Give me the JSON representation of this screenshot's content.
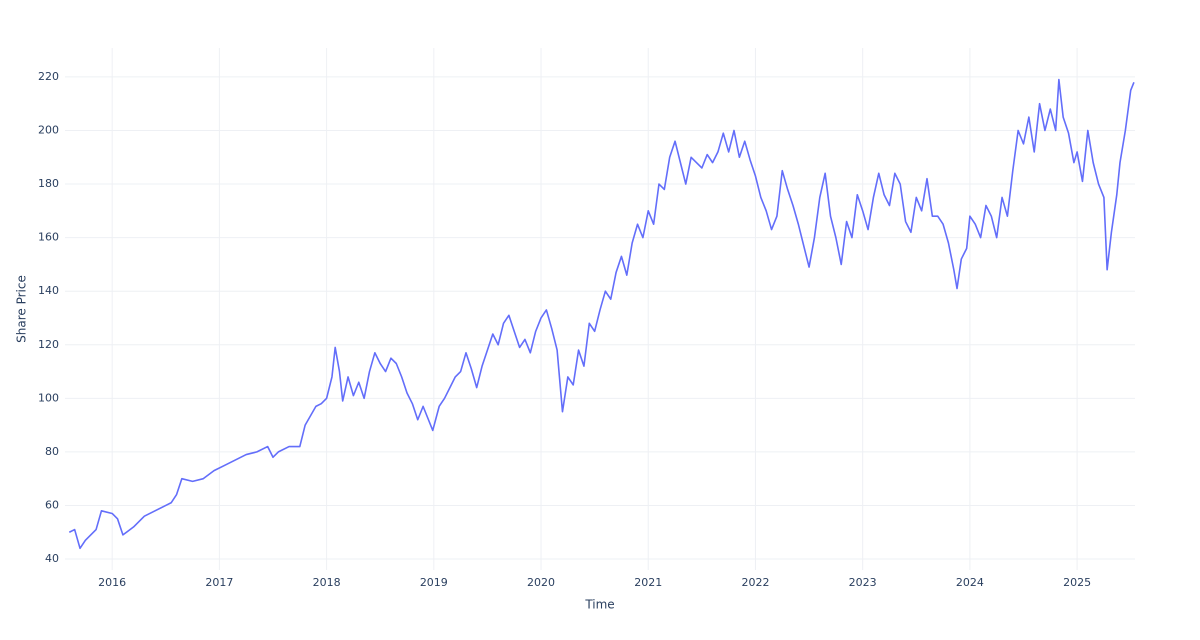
{
  "chart_data": {
    "type": "line",
    "x_label": "Time",
    "y_label": "Share Price",
    "xlim": [
      2015.56,
      2025.54
    ],
    "xticks": [
      2016,
      2017,
      2018,
      2019,
      2020,
      2021,
      2022,
      2023,
      2024,
      2025
    ],
    "ylim": [
      35.9,
      230.8
    ],
    "yticks": [
      40,
      60,
      80,
      100,
      120,
      140,
      160,
      180,
      200,
      220
    ],
    "grid": true,
    "series": [
      {
        "color": "#636efa",
        "x": [
          2015.6,
          2015.65,
          2015.7,
          2015.75,
          2015.85,
          2015.9,
          2016.0,
          2016.05,
          2016.1,
          2016.2,
          2016.3,
          2016.4,
          2016.5,
          2016.55,
          2016.6,
          2016.65,
          2016.75,
          2016.85,
          2016.95,
          2017.05,
          2017.15,
          2017.25,
          2017.35,
          2017.45,
          2017.5,
          2017.55,
          2017.65,
          2017.75,
          2017.8,
          2017.9,
          2017.95,
          2018.0,
          2018.05,
          2018.08,
          2018.12,
          2018.15,
          2018.2,
          2018.25,
          2018.3,
          2018.35,
          2018.4,
          2018.45,
          2018.5,
          2018.55,
          2018.6,
          2018.65,
          2018.7,
          2018.75,
          2018.8,
          2018.85,
          2018.9,
          2018.95,
          2018.99,
          2019.05,
          2019.1,
          2019.15,
          2019.2,
          2019.25,
          2019.3,
          2019.35,
          2019.4,
          2019.45,
          2019.5,
          2019.55,
          2019.6,
          2019.65,
          2019.7,
          2019.75,
          2019.8,
          2019.85,
          2019.9,
          2019.95,
          2020.0,
          2020.05,
          2020.1,
          2020.15,
          2020.2,
          2020.25,
          2020.3,
          2020.35,
          2020.4,
          2020.45,
          2020.5,
          2020.55,
          2020.6,
          2020.65,
          2020.7,
          2020.75,
          2020.8,
          2020.85,
          2020.9,
          2020.95,
          2021.0,
          2021.05,
          2021.1,
          2021.15,
          2021.2,
          2021.25,
          2021.3,
          2021.35,
          2021.4,
          2021.5,
          2021.55,
          2021.6,
          2021.65,
          2021.7,
          2021.75,
          2021.8,
          2021.85,
          2021.9,
          2021.95,
          2022.0,
          2022.05,
          2022.1,
          2022.15,
          2022.2,
          2022.25,
          2022.3,
          2022.35,
          2022.4,
          2022.45,
          2022.5,
          2022.55,
          2022.6,
          2022.65,
          2022.7,
          2022.75,
          2022.8,
          2022.85,
          2022.9,
          2022.95,
          2023.0,
          2023.05,
          2023.1,
          2023.15,
          2023.2,
          2023.25,
          2023.3,
          2023.35,
          2023.4,
          2023.45,
          2023.5,
          2023.55,
          2023.6,
          2023.65,
          2023.7,
          2023.75,
          2023.8,
          2023.85,
          2023.88,
          2023.92,
          2023.97,
          2024.0,
          2024.05,
          2024.1,
          2024.15,
          2024.2,
          2024.25,
          2024.3,
          2024.35,
          2024.4,
          2024.45,
          2024.5,
          2024.55,
          2024.6,
          2024.65,
          2024.7,
          2024.75,
          2024.8,
          2024.83,
          2024.87,
          2024.92,
          2024.97,
          2025.0,
          2025.05,
          2025.1,
          2025.15,
          2025.2,
          2025.25,
          2025.28,
          2025.32,
          2025.37,
          2025.4,
          2025.45,
          2025.5,
          2025.53
        ],
        "values": [
          50,
          51,
          44,
          47,
          51,
          58,
          57,
          55,
          49,
          52,
          56,
          58,
          60,
          61,
          64,
          70,
          69,
          70,
          73,
          75,
          77,
          79,
          80,
          82,
          78,
          80,
          82,
          82,
          90,
          97,
          98,
          100,
          108,
          119,
          110,
          99,
          108,
          101,
          106,
          100,
          110,
          117,
          113,
          110,
          115,
          113,
          108,
          102,
          98,
          92,
          97,
          92,
          88,
          97,
          100,
          104,
          108,
          110,
          117,
          111,
          104,
          112,
          118,
          124,
          120,
          128,
          131,
          125,
          119,
          122,
          117,
          125,
          130,
          133,
          126,
          118,
          95,
          108,
          105,
          118,
          112,
          128,
          125,
          133,
          140,
          137,
          147,
          153,
          146,
          158,
          165,
          160,
          170,
          165,
          180,
          178,
          190,
          196,
          188,
          180,
          190,
          186,
          191,
          188,
          192,
          199,
          192,
          200,
          190,
          196,
          189,
          183,
          175,
          170,
          163,
          168,
          185,
          178,
          172,
          165,
          157,
          149,
          160,
          175,
          184,
          168,
          160,
          150,
          166,
          160,
          176,
          170,
          163,
          175,
          184,
          176,
          172,
          184,
          180,
          166,
          162,
          175,
          170,
          182,
          168,
          168,
          165,
          158,
          148,
          141,
          152,
          156,
          168,
          165,
          160,
          172,
          168,
          160,
          175,
          168,
          185,
          200,
          195,
          205,
          192,
          210,
          200,
          208,
          200,
          219,
          205,
          199,
          188,
          192,
          181,
          200,
          188,
          180,
          175,
          148,
          162,
          176,
          188,
          200,
          215,
          218
        ]
      }
    ]
  }
}
